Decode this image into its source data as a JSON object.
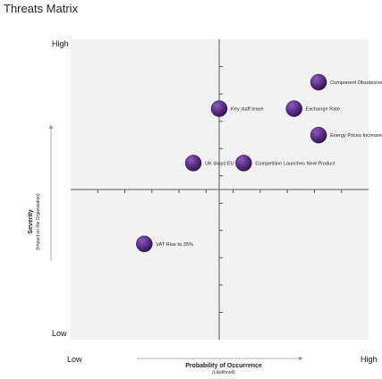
{
  "title": "Threats Matrix",
  "chart_data": {
    "type": "scatter",
    "title": "Threats Matrix",
    "xlabel": "Probability of Occurrence",
    "xlabel_sub": "(Likelihood)",
    "ylabel": "Severity",
    "ylabel_sub": "(Impact on the Organisation)",
    "y_high_label": "High",
    "y_low_label": "Low",
    "x_low_label": "Low",
    "x_high_label": "High",
    "xlim": [
      -1,
      1
    ],
    "ylim": [
      -1,
      1
    ],
    "grid": false,
    "marker_color": "#5a2f86",
    "points": [
      {
        "label": "Component Obsolescence",
        "x": 0.73,
        "y": 0.73
      },
      {
        "label": "Key staff leave",
        "x": 0.0,
        "y": 0.55
      },
      {
        "label": "Exchange Rate",
        "x": 0.55,
        "y": 0.55
      },
      {
        "label": "Energy Prices Increase to X",
        "x": 0.73,
        "y": 0.37
      },
      {
        "label": "UK drops EU",
        "x": -0.19,
        "y": 0.18
      },
      {
        "label": "Competition Launches New Product",
        "x": 0.18,
        "y": 0.18
      },
      {
        "label": "VAT Rise to 35%",
        "x": -0.55,
        "y": -0.37
      }
    ]
  }
}
